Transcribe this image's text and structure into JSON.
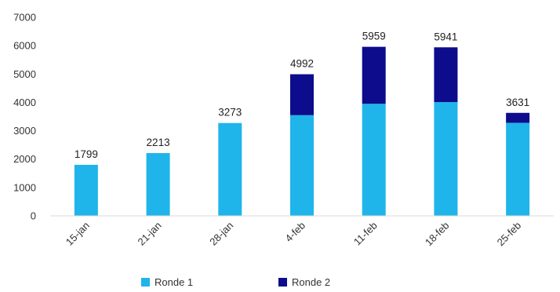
{
  "chart_data": {
    "type": "bar",
    "stacked": true,
    "categories": [
      "15-jan",
      "21-jan",
      "28-jan",
      "4-feb",
      "11-feb",
      "18-feb",
      "25-feb"
    ],
    "series": [
      {
        "name": "Ronde 1",
        "color": "#1FB5EA",
        "values": [
          1799,
          2213,
          3273,
          3550,
          3950,
          4010,
          3280
        ]
      },
      {
        "name": "Ronde 2",
        "color": "#0C0C8C",
        "values": [
          0,
          0,
          0,
          1442,
          2009,
          1931,
          351
        ]
      }
    ],
    "totals": [
      1799,
      2213,
      3273,
      4992,
      5959,
      5941,
      3631
    ],
    "yticks": [
      0,
      1000,
      2000,
      3000,
      4000,
      5000,
      6000,
      7000
    ],
    "ylim": [
      0,
      7000
    ],
    "grid": false,
    "legend_position": "bottom"
  }
}
